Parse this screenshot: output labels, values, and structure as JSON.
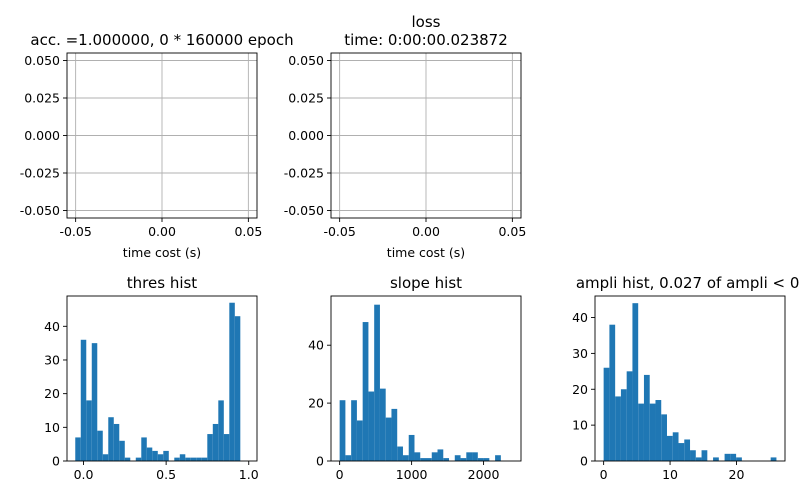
{
  "chart_data": [
    {
      "type": "line",
      "title": "acc. =1.000000, 0 * 160000 epoch",
      "xlabel": "time cost (s)",
      "ylabel": "",
      "xlim": [
        -0.055,
        0.055
      ],
      "ylim": [
        -0.055,
        0.055
      ],
      "xticks": [
        "-0.05",
        "0.00",
        "0.05"
      ],
      "yticks": [
        "-0.050",
        "-0.025",
        "0.000",
        "0.025",
        "0.050"
      ],
      "grid": true,
      "series": []
    },
    {
      "type": "line",
      "title": "loss\ntime: 0:00:00.023872",
      "xlabel": "time cost (s)",
      "ylabel": "",
      "xlim": [
        -0.055,
        0.055
      ],
      "ylim": [
        -0.055,
        0.055
      ],
      "xticks": [
        "-0.05",
        "0.00",
        "0.05"
      ],
      "yticks": [
        "-0.050",
        "-0.025",
        "0.000",
        "0.025",
        "0.050"
      ],
      "grid": true,
      "series": []
    },
    {
      "type": "bar",
      "title": "thres hist",
      "xticks": [
        "0.0",
        "0.5",
        "1.0"
      ],
      "yticks": [
        "0",
        "10",
        "20",
        "30",
        "40"
      ],
      "grid": false,
      "bins_start": -0.05,
      "bin_width": 0.0333,
      "values": [
        7,
        36,
        18,
        35,
        9,
        2,
        13,
        11,
        6,
        1,
        0,
        1,
        7,
        4,
        3,
        2,
        3,
        0,
        1,
        2,
        1,
        1,
        1,
        1,
        8,
        11,
        18,
        8,
        47,
        43
      ],
      "xlim": [
        -0.1,
        1.05
      ],
      "ylim": [
        0,
        49
      ]
    },
    {
      "type": "bar",
      "title": "slope hist",
      "xticks": [
        "0",
        "1000",
        "2000"
      ],
      "yticks": [
        "0",
        "20",
        "40"
      ],
      "grid": false,
      "bins_start": 0,
      "bin_width": 80,
      "values": [
        21,
        2,
        21,
        14,
        48,
        24,
        54,
        25,
        15,
        18,
        5,
        2,
        9,
        3,
        1,
        1,
        3,
        4,
        1,
        0,
        2,
        1,
        3,
        3,
        1,
        1,
        0,
        2,
        0,
        0
      ],
      "xlim": [
        -120,
        2520
      ],
      "ylim": [
        0,
        57
      ]
    },
    {
      "type": "bar",
      "title": "ampli hist, 0.027 of ampli < 0.",
      "xticks": [
        "0",
        "10",
        "20"
      ],
      "yticks": [
        "0",
        "10",
        "20",
        "30",
        "40"
      ],
      "grid": false,
      "bins_start": 0,
      "bin_width": 0.867,
      "values": [
        26,
        38,
        18,
        20,
        25,
        44,
        16,
        24,
        16,
        17,
        13,
        7,
        8,
        5,
        6,
        3,
        1,
        3,
        0,
        1,
        0,
        2,
        2,
        1,
        0,
        0,
        0,
        0,
        0,
        1
      ],
      "xlim": [
        -1.3,
        27.3
      ],
      "ylim": [
        0,
        46
      ]
    }
  ],
  "style": {
    "bar_color": "#1f77b4",
    "grid_color": "#b0b0b0",
    "axis_color": "#000000"
  }
}
